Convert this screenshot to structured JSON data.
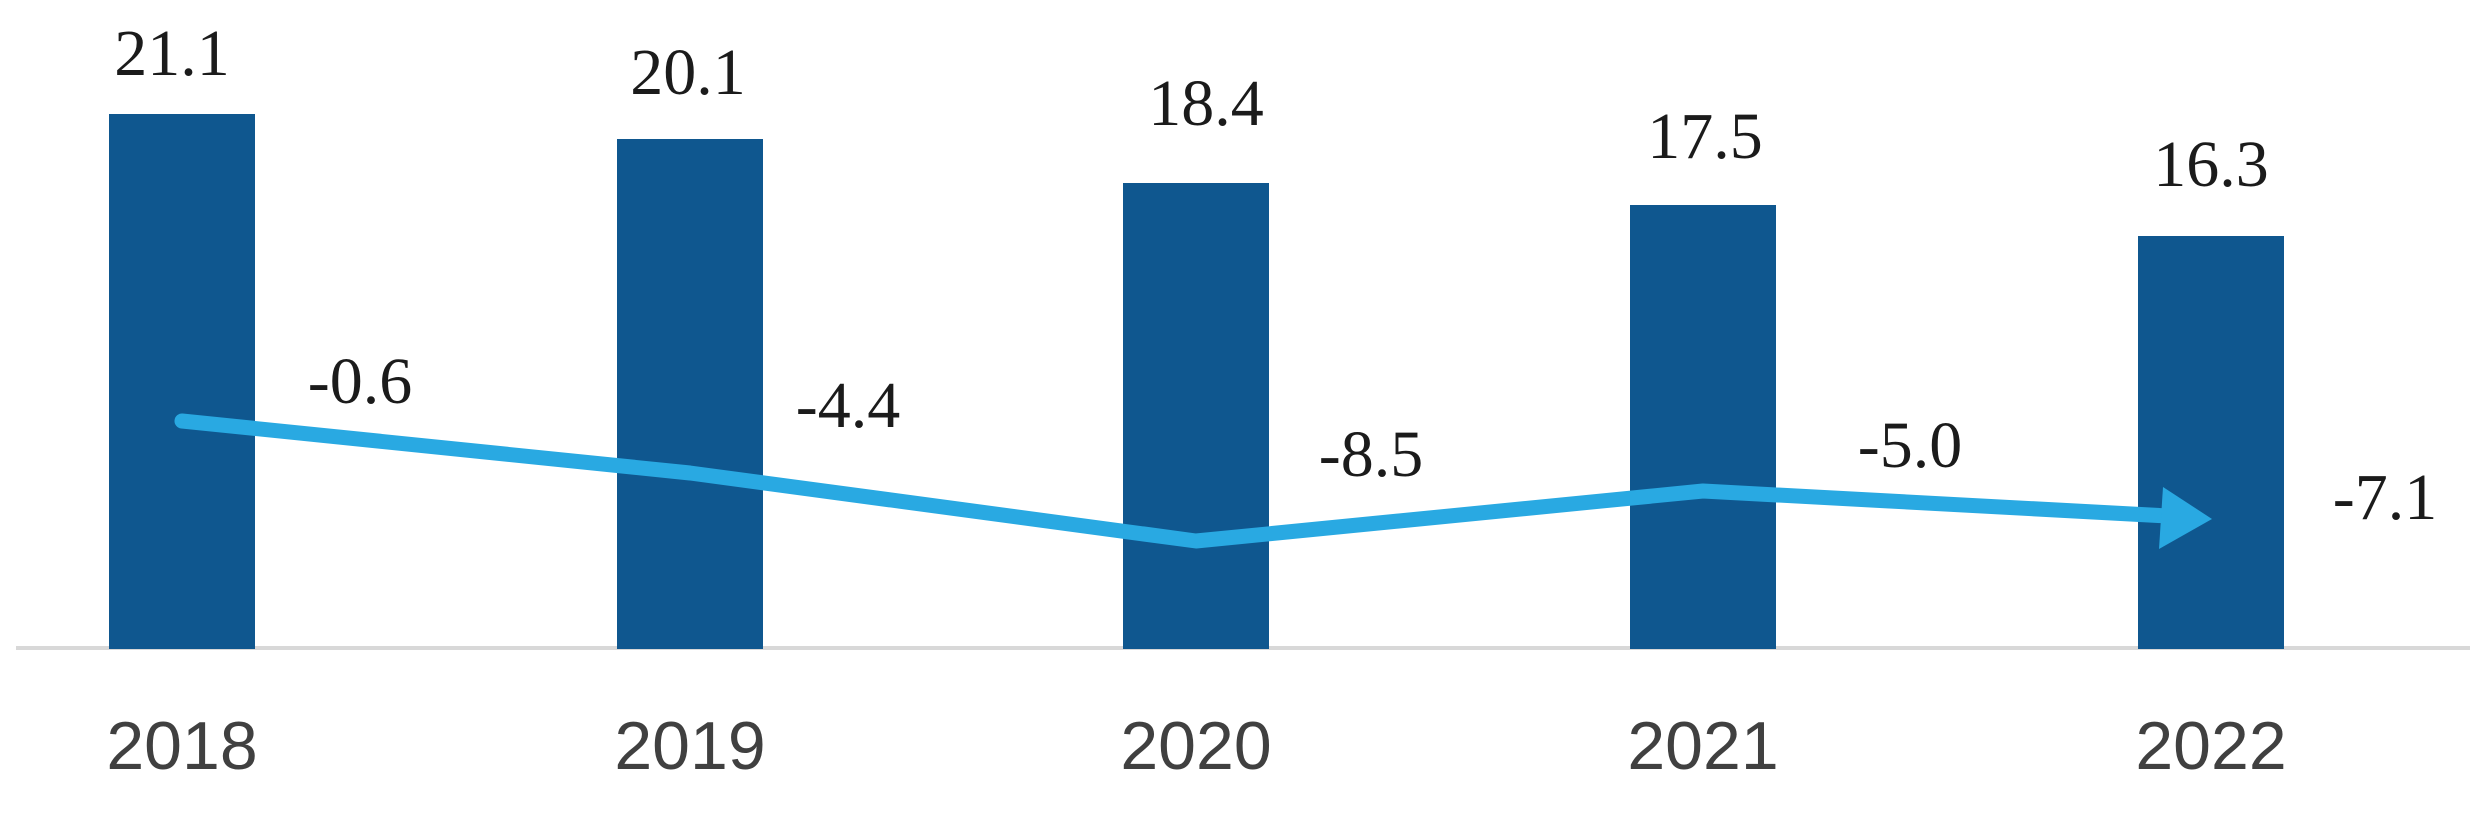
{
  "chart_data": {
    "type": "bar",
    "subtype": "bar-with-line-overlay",
    "title": "",
    "xlabel": "",
    "ylabel": "",
    "legend": "none",
    "grid": "off",
    "background": "#FFFFFF",
    "axis_line_color": "#D8D8D8",
    "categories": [
      "2018",
      "2019",
      "2020",
      "2021",
      "2022"
    ],
    "series": [
      {
        "name": "bar-values",
        "kind": "bar",
        "values": [
          21.1,
          20.1,
          18.4,
          17.5,
          16.3
        ],
        "labels": [
          "21.1",
          "20.1",
          "18.4",
          "17.5",
          "16.3"
        ],
        "color": "#0F578F",
        "label_color": "#1B1B1B"
      },
      {
        "name": "change-line",
        "kind": "line",
        "values": [
          -0.6,
          -4.4,
          -8.5,
          -5.0,
          -7.1
        ],
        "labels": [
          "-0.6",
          "-4.4",
          "-8.5",
          "-5.0",
          "-7.1"
        ],
        "color": "#29A9E2",
        "label_color": "#1B1B1B",
        "arrow_end": true
      }
    ],
    "x_tick_labels": [
      "2018",
      "2019",
      "2020",
      "2021",
      "2022"
    ],
    "x_tick_color": "#404040"
  }
}
